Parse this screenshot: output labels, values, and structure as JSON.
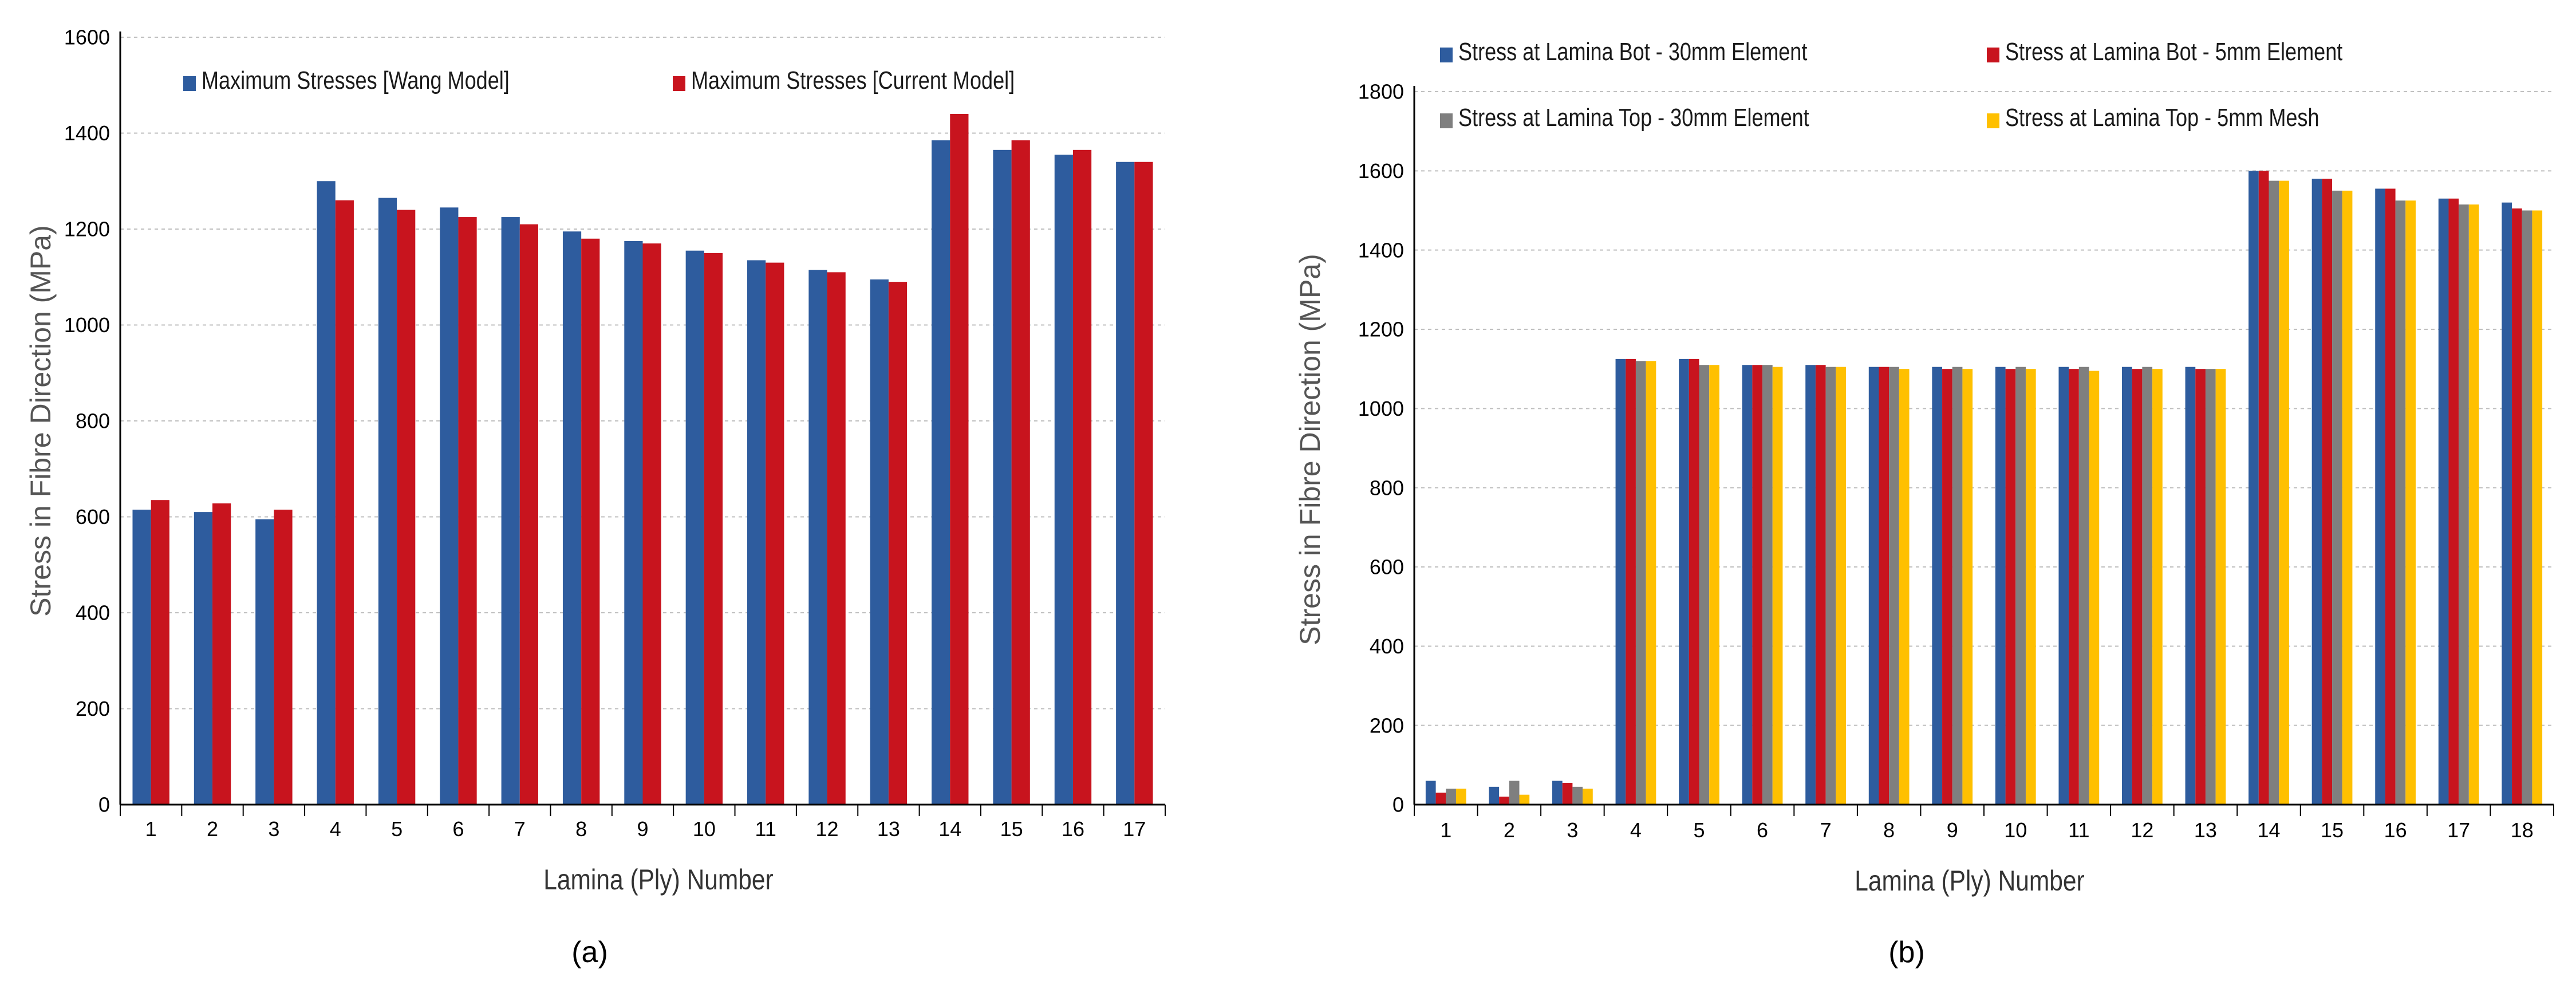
{
  "colors": {
    "blue": "#2E5C9E",
    "red": "#C8141E",
    "gray": "#7F7F7F",
    "yellow": "#FFC000",
    "grid": "#BFBFBF",
    "axis": "#000000",
    "label": "#555555"
  },
  "chart_data": [
    {
      "type": "bar",
      "panel_caption": "(a)",
      "title": "",
      "xlabel": "Lamina (Ply) Number",
      "ylabel": "Stress in Fibre Direction (MPa)",
      "ylim": [
        0,
        1600
      ],
      "yticks": [
        "0",
        "200",
        "400",
        "600",
        "800",
        "1000",
        "1200",
        "1400",
        "1600"
      ],
      "grid": true,
      "legend_position": "top",
      "categories": [
        "1",
        "2",
        "3",
        "4",
        "5",
        "6",
        "7",
        "8",
        "9",
        "10",
        "11",
        "12",
        "13",
        "14",
        "15",
        "16",
        "17"
      ],
      "series": [
        {
          "name": "Maximum Stresses [Wang  Model]",
          "color": "#2E5C9E",
          "values": [
            615,
            610,
            595,
            1300,
            1265,
            1245,
            1225,
            1195,
            1175,
            1155,
            1135,
            1115,
            1095,
            1385,
            1365,
            1355,
            1340
          ]
        },
        {
          "name": "Maximum Stresses [Current Model]",
          "color": "#C8141E",
          "values": [
            635,
            628,
            615,
            1260,
            1240,
            1225,
            1210,
            1180,
            1170,
            1150,
            1130,
            1110,
            1090,
            1440,
            1385,
            1365,
            1340
          ]
        }
      ]
    },
    {
      "type": "bar",
      "panel_caption": "(b)",
      "title": "",
      "xlabel": "Lamina (Ply) Number",
      "ylabel": "Stress in Fibre Direction (MPa)",
      "ylim": [
        0,
        1800
      ],
      "yticks": [
        "0",
        "200",
        "400",
        "600",
        "800",
        "1000",
        "1200",
        "1400",
        "1600",
        "1800"
      ],
      "grid": true,
      "legend_position": "top",
      "categories": [
        "1",
        "2",
        "3",
        "4",
        "5",
        "6",
        "7",
        "8",
        "9",
        "10",
        "11",
        "12",
        "13",
        "14",
        "15",
        "16",
        "17",
        "18"
      ],
      "series": [
        {
          "name": "Stress at Lamina Bot - 30mm Element",
          "color": "#2E5C9E",
          "values": [
            60,
            45,
            60,
            1125,
            1125,
            1110,
            1110,
            1105,
            1105,
            1105,
            1105,
            1105,
            1105,
            1600,
            1580,
            1555,
            1530,
            1520
          ]
        },
        {
          "name": "Stress at Lamina Bot - 5mm Element",
          "color": "#C8141E",
          "values": [
            30,
            20,
            55,
            1125,
            1125,
            1110,
            1110,
            1105,
            1100,
            1100,
            1100,
            1100,
            1100,
            1600,
            1580,
            1555,
            1530,
            1505
          ]
        },
        {
          "name": "Stress at Lamina Top - 30mm Element",
          "color": "#7F7F7F",
          "values": [
            40,
            60,
            45,
            1120,
            1110,
            1110,
            1105,
            1105,
            1105,
            1105,
            1105,
            1105,
            1100,
            1575,
            1550,
            1525,
            1515,
            1500
          ]
        },
        {
          "name": "Stress at Lamina Top - 5mm Mesh",
          "color": "#FFC000",
          "values": [
            40,
            25,
            40,
            1120,
            1110,
            1105,
            1105,
            1100,
            1100,
            1100,
            1095,
            1100,
            1100,
            1575,
            1550,
            1525,
            1515,
            1500
          ]
        }
      ]
    }
  ]
}
